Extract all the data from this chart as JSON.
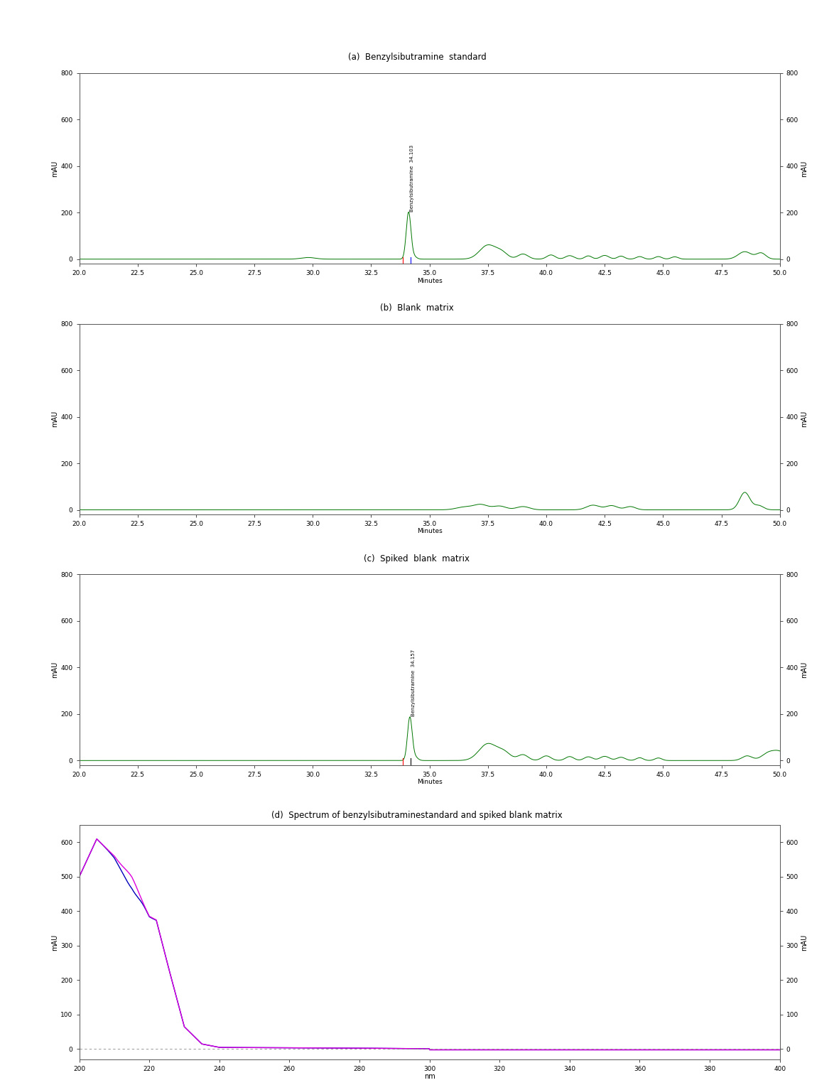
{
  "panel_a": {
    "title": "(a)  Benzylsibutramine  standard",
    "xlabel": "Minutes",
    "ylabel_left": "mAU",
    "ylabel_right": "mAU",
    "xlim": [
      20.0,
      50.0
    ],
    "ylim": [
      -20,
      800
    ],
    "yticks": [
      0,
      200,
      400,
      600,
      800
    ],
    "xticks": [
      20.0,
      22.5,
      25.0,
      27.5,
      30.0,
      32.5,
      35.0,
      37.5,
      40.0,
      42.5,
      45.0,
      47.5,
      50.0
    ],
    "peak_time": 34.103,
    "peak_height": 200,
    "peak_label": "Benzylsibutramine  34.103",
    "line_color": "#007700",
    "red_mark_x": 33.85,
    "blue_mark_x": 34.18
  },
  "panel_b": {
    "title": "(b)  Blank  matrix",
    "xlabel": "Minutes",
    "ylabel_left": "mAU",
    "ylabel_right": "mAU",
    "xlim": [
      20.0,
      50.0
    ],
    "ylim": [
      -20,
      800
    ],
    "yticks": [
      0,
      200,
      400,
      600,
      800
    ],
    "xticks": [
      20.0,
      22.5,
      25.0,
      27.5,
      30.0,
      32.5,
      35.0,
      37.5,
      40.0,
      42.5,
      45.0,
      47.5,
      50.0
    ],
    "line_color": "#007700"
  },
  "panel_c": {
    "title": "(c)  Spiked  blank  matrix",
    "xlabel": "Minutes",
    "ylabel_left": "mAU",
    "ylabel_right": "mAU",
    "xlim": [
      20.0,
      50.0
    ],
    "ylim": [
      -20,
      800
    ],
    "yticks": [
      0,
      200,
      400,
      600,
      800
    ],
    "xticks": [
      20.0,
      22.5,
      25.0,
      27.5,
      30.0,
      32.5,
      35.0,
      37.5,
      40.0,
      42.5,
      45.0,
      47.5,
      50.0
    ],
    "peak_time": 34.157,
    "peak_height": 185,
    "peak_label": "Benzylsibutramine  34.157",
    "line_color": "#007700",
    "red_mark_x": 33.85,
    "blue_mark_x": 34.2
  },
  "panel_d": {
    "title": "(d)  Spectrum of benzylsibutraminestandard and spiked blank matrix",
    "xlabel": "nm",
    "ylabel_left": "mAU",
    "ylabel_right": "mAU",
    "xlim": [
      200,
      400
    ],
    "ylim": [
      -30,
      650
    ],
    "yticks": [
      0,
      100,
      200,
      300,
      400,
      500,
      600
    ],
    "xticks": [
      200,
      220,
      240,
      260,
      280,
      300,
      320,
      340,
      360,
      380,
      400
    ],
    "line_color1": "#dd00dd",
    "line_color2": "#0000bb"
  },
  "bg_color": "#ffffff"
}
